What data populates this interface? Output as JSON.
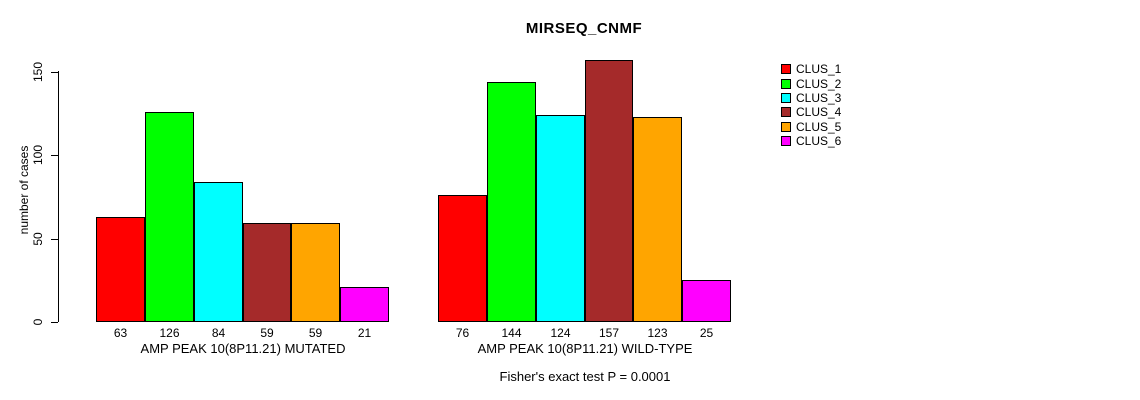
{
  "chart_data": {
    "type": "bar",
    "title": "MIRSEQ_CNMF",
    "ylabel": "number of cases",
    "ylim": [
      0,
      157
    ],
    "yticks": [
      0,
      50,
      100,
      150
    ],
    "grid": false,
    "legend_position": "right",
    "clusters": [
      "CLUS_1",
      "CLUS_2",
      "CLUS_3",
      "CLUS_4",
      "CLUS_5",
      "CLUS_6"
    ],
    "colors": [
      "#FF0000",
      "#00FF00",
      "#00FFFF",
      "#A52A2A",
      "#FFA500",
      "#FF00FF"
    ],
    "groups": [
      {
        "label": "AMP PEAK 10(8P11.21) MUTATED",
        "values": [
          63,
          126,
          84,
          59,
          59,
          21
        ]
      },
      {
        "label": "AMP PEAK 10(8P11.21) WILD-TYPE",
        "values": [
          76,
          144,
          124,
          157,
          123,
          25
        ]
      }
    ],
    "annotation": "Fisher's exact test P = 0.0001"
  }
}
